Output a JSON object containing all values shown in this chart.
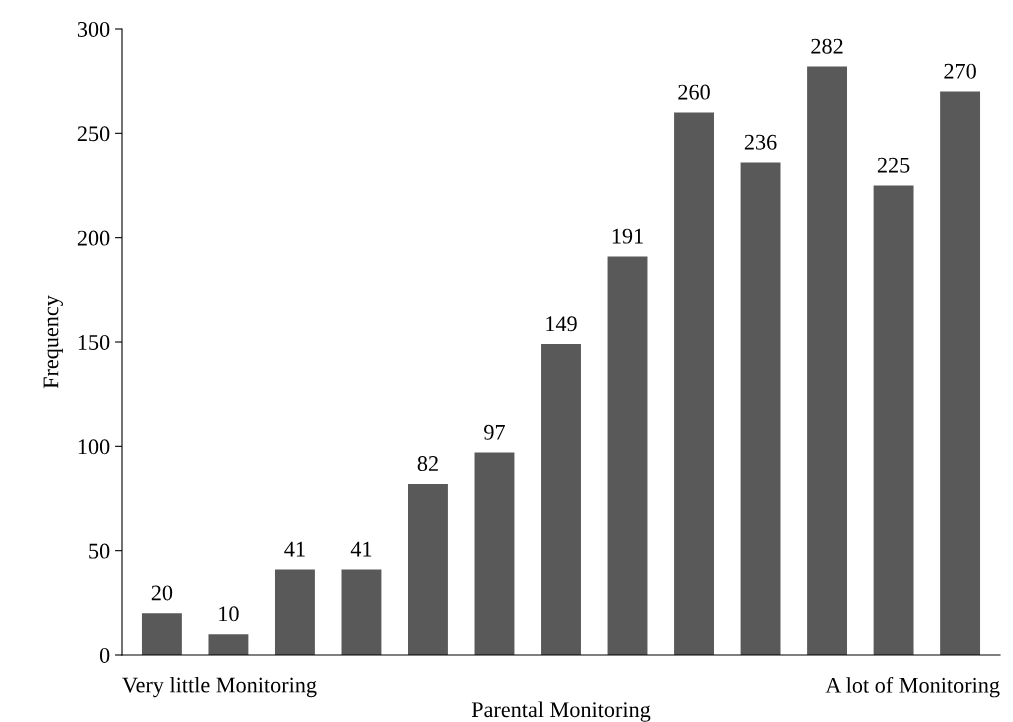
{
  "chart_data": {
    "type": "bar",
    "xlabel": "Parental Monitoring",
    "ylabel": "Frequency",
    "categories": [
      null,
      null,
      null,
      null,
      null,
      null,
      null,
      null,
      null,
      null,
      null,
      null,
      null
    ],
    "values": [
      20,
      10,
      41,
      41,
      82,
      97,
      149,
      191,
      260,
      236,
      282,
      225,
      270
    ],
    "color": "#595959",
    "ylim": [
      0,
      300
    ],
    "yticks": [
      0,
      50,
      100,
      150,
      200,
      250,
      300
    ],
    "grid": false,
    "data_labels": true,
    "annotations": [
      "Very little Monitoring",
      "A lot of Monitoring"
    ]
  }
}
